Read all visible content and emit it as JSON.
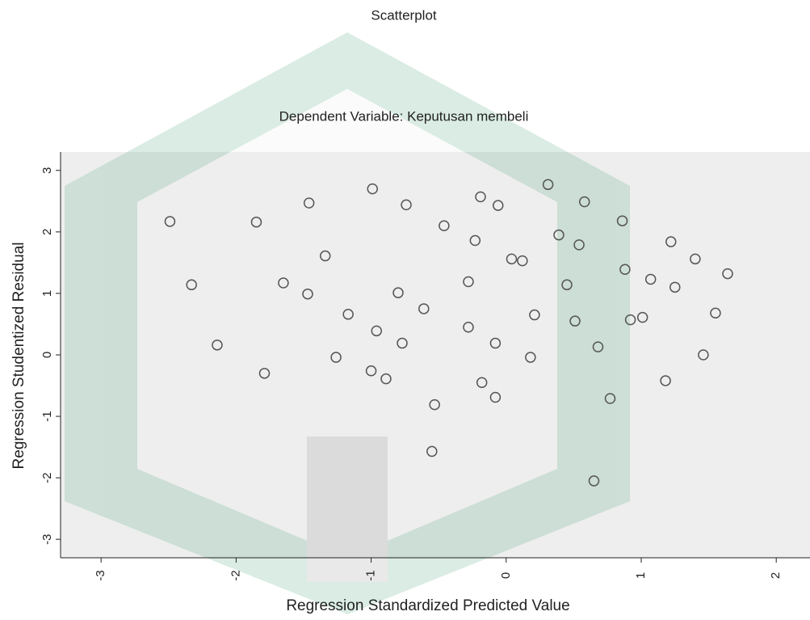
{
  "chart_data": {
    "type": "scatter",
    "title": "Scatterplot",
    "subtitle": "Dependent Variable: Keputusan membeli",
    "x_label": "Regression Standardized Predicted Value",
    "y_label": "Regression Studentized Residual",
    "x": [
      -2.49,
      -2.33,
      -2.14,
      -1.85,
      -1.79,
      -1.65,
      -1.47,
      -1.46,
      -1.34,
      -1.26,
      -1.17,
      -0.99,
      -0.96,
      -1.0,
      -0.89,
      -0.8,
      -0.77,
      -0.74,
      -0.61,
      -0.53,
      -0.55,
      -0.46,
      -0.28,
      -0.28,
      -0.23,
      -0.19,
      -0.18,
      -0.08,
      -0.06,
      -0.08,
      0.04,
      0.12,
      0.18,
      0.21,
      0.31,
      0.39,
      0.45,
      0.51,
      0.54,
      0.58,
      0.68,
      0.77,
      0.65,
      0.86,
      0.88,
      0.92,
      1.01,
      1.07,
      1.18,
      1.22,
      1.4,
      1.25,
      1.46,
      1.55,
      1.64
    ],
    "values": [
      2.17,
      1.14,
      0.16,
      2.16,
      -0.3,
      1.17,
      0.99,
      2.47,
      1.61,
      -0.04,
      0.66,
      2.7,
      0.39,
      -0.26,
      -0.39,
      1.01,
      0.19,
      2.44,
      0.75,
      -0.81,
      -1.57,
      2.1,
      1.19,
      0.45,
      1.86,
      2.57,
      -0.45,
      0.19,
      2.43,
      -0.69,
      1.56,
      1.53,
      -0.04,
      0.65,
      2.77,
      1.95,
      1.14,
      0.55,
      1.79,
      2.49,
      0.13,
      -0.71,
      -2.05,
      2.18,
      1.39,
      0.57,
      0.61,
      1.23,
      -0.42,
      1.84,
      1.56,
      1.1,
      0.0,
      0.68,
      1.32
    ],
    "color": "#555555",
    "xlim": [
      -3.3,
      2.25
    ],
    "xticks": [
      -3,
      -2,
      -1,
      0,
      1,
      2
    ],
    "ylim": [
      -3.3,
      3.3
    ],
    "yticks": [
      -3,
      -2,
      -1,
      0,
      1,
      2,
      3
    ],
    "grid": false
  }
}
